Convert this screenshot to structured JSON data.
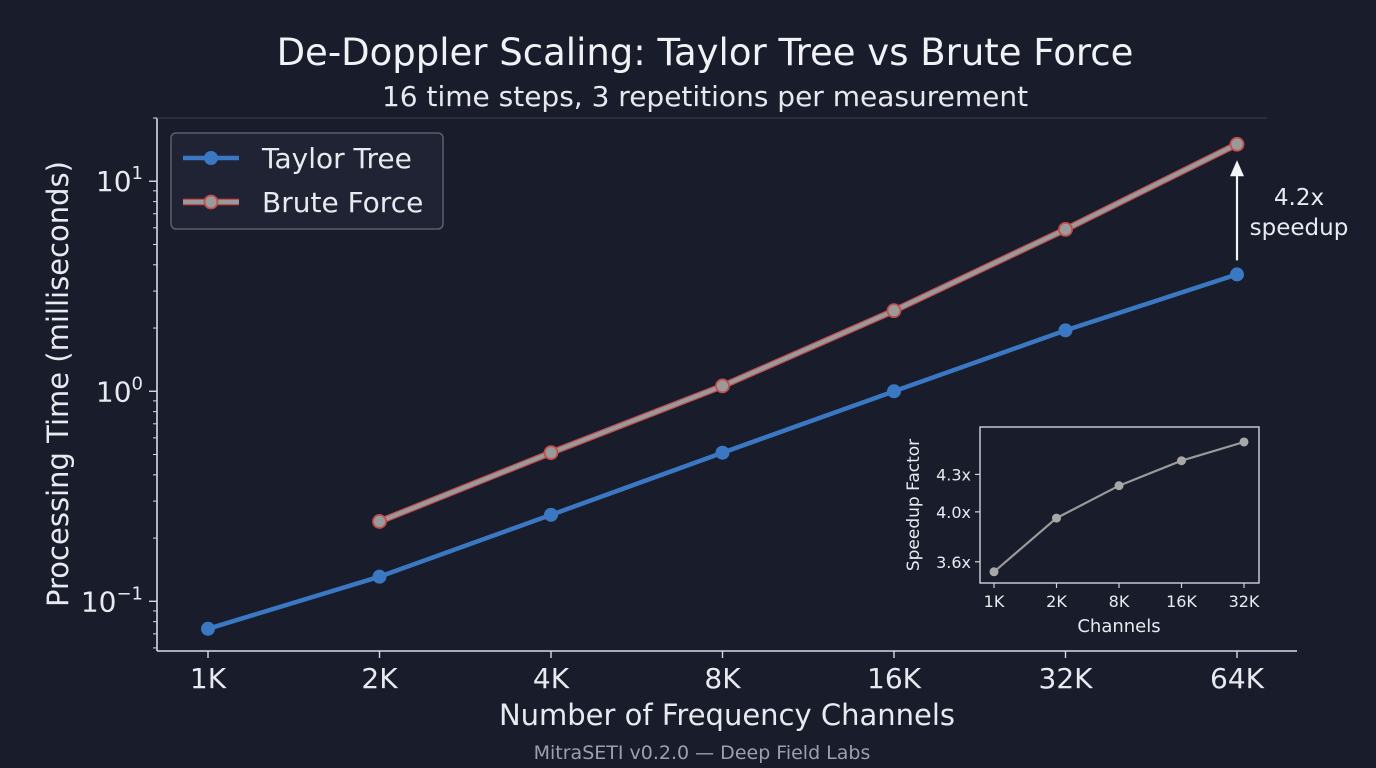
{
  "colors": {
    "background": "#181c2b",
    "axis": "#d8dbe3",
    "text": "#e8eaf0",
    "taylor": "#3a78c4",
    "brute_line": "#9a9a9a",
    "brute_edge": "#c44e4e",
    "inset_line": "#9a9a9a",
    "muted_text": "#9ba0ad"
  },
  "chart_data": [
    {
      "type": "line",
      "title": "De-Doppler Scaling: Taylor Tree vs Brute Force",
      "subtitle": "16 time steps, 3 repetitions per measurement",
      "xlabel": "Number of Frequency Channels",
      "ylabel": "Processing Time (milliseconds)",
      "yscale": "log",
      "ylim": [
        0.058,
        20
      ],
      "categories": [
        "1K",
        "2K",
        "4K",
        "8K",
        "16K",
        "32K",
        "64K"
      ],
      "yticks": [
        {
          "value": 0.1,
          "base": "10",
          "exp": "−1"
        },
        {
          "value": 1,
          "base": "10",
          "exp": "0"
        },
        {
          "value": 10,
          "base": "10",
          "exp": "1"
        }
      ],
      "legend_position": "top-left",
      "grid": false,
      "series": [
        {
          "name": "Taylor Tree",
          "values": [
            0.074,
            0.131,
            0.258,
            0.51,
            1.0,
            1.95,
            3.6
          ]
        },
        {
          "name": "Brute Force",
          "values": [
            null,
            0.24,
            0.51,
            1.06,
            2.42,
            5.9,
            15.0
          ]
        }
      ],
      "annotation": {
        "line1": "4.2x",
        "line2": "speedup",
        "category": "64K",
        "from": 3.6,
        "to": 15.0
      }
    },
    {
      "type": "line",
      "title": "",
      "xlabel": "Channels",
      "ylabel": "Speedup Factor",
      "categories": [
        "1K",
        "2K",
        "8K",
        "16K",
        "32K"
      ],
      "ylim": [
        3.43,
        4.68
      ],
      "yticks": [
        {
          "value": 3.6,
          "label": "3.6x"
        },
        {
          "value": 4.0,
          "label": "4.0x"
        },
        {
          "value": 4.3,
          "label": "4.3x"
        }
      ],
      "series": [
        {
          "values": [
            3.52,
            3.95,
            4.21,
            4.41,
            4.56
          ]
        }
      ]
    }
  ],
  "footer": "MitraSETI v0.2.0 — Deep Field Labs"
}
